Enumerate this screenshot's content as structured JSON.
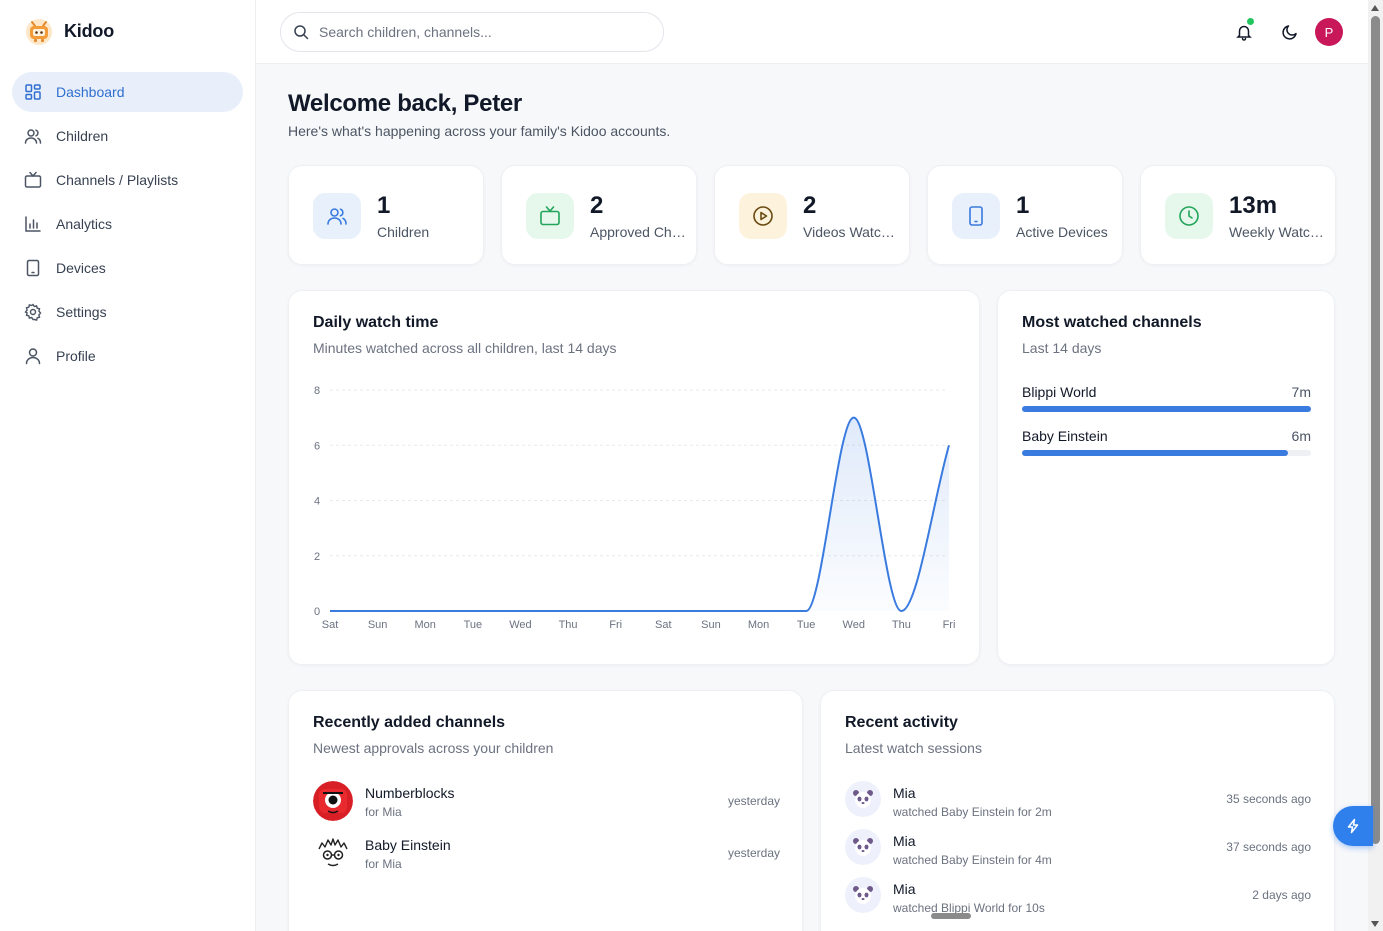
{
  "brand": {
    "name": "Kidoo"
  },
  "sidebar": {
    "items": [
      {
        "label": "Dashboard",
        "icon": "grid-icon",
        "active": true
      },
      {
        "label": "Children",
        "icon": "users-icon"
      },
      {
        "label": "Channels / Playlists",
        "icon": "tv-icon"
      },
      {
        "label": "Analytics",
        "icon": "bar-chart-icon"
      },
      {
        "label": "Devices",
        "icon": "tablet-icon"
      },
      {
        "label": "Settings",
        "icon": "gear-icon"
      },
      {
        "label": "Profile",
        "icon": "user-icon"
      }
    ]
  },
  "topbar": {
    "search_placeholder": "Search children, channels...",
    "avatar_initial": "P"
  },
  "welcome": {
    "title": "Welcome back, Peter",
    "subtitle": "Here's what's happening across your family's Kidoo accounts."
  },
  "stats": [
    {
      "value": "1",
      "label": "Children",
      "icon": "users-icon",
      "bg": "#e8f0fb",
      "fg": "#3a7be0"
    },
    {
      "value": "2",
      "label": "Approved Channels",
      "icon": "tv-icon",
      "bg": "#e6f7ec",
      "fg": "#22a55a"
    },
    {
      "value": "2",
      "label": "Videos Watched",
      "icon": "play-circle-icon",
      "bg": "#fdf3dc",
      "fg": "#6b4a12"
    },
    {
      "value": "1",
      "label": "Active Devices",
      "icon": "tablet-icon",
      "bg": "#e8f0fb",
      "fg": "#3a7be0"
    },
    {
      "value": "13m",
      "label": "Weekly Watch Time",
      "icon": "clock-icon",
      "bg": "#e6f7ec",
      "fg": "#22a55a"
    }
  ],
  "daily_chart": {
    "title": "Daily watch time",
    "subtitle": "Minutes watched across all children, last 14 days"
  },
  "chart_data": {
    "type": "area",
    "categories": [
      "Sat",
      "Sun",
      "Mon",
      "Tue",
      "Wed",
      "Thu",
      "Fri",
      "Sat",
      "Sun",
      "Mon",
      "Tue",
      "Wed",
      "Thu",
      "Fri"
    ],
    "values": [
      0,
      0,
      0,
      0,
      0,
      0,
      0,
      0,
      0,
      0,
      0,
      7,
      0,
      6
    ],
    "ylim": [
      0,
      8
    ],
    "yticks": [
      "0",
      "2",
      "4",
      "6",
      "8"
    ],
    "grid": true,
    "color": "#3a7be0"
  },
  "most_watched": {
    "title": "Most watched channels",
    "subtitle": "Last 14 days",
    "items": [
      {
        "name": "Blippi World",
        "value": "7m",
        "fraction": 1.0
      },
      {
        "name": "Baby Einstein",
        "value": "6m",
        "fraction": 0.92
      }
    ]
  },
  "recent_channels": {
    "title": "Recently added channels",
    "subtitle": "Newest approvals across your children",
    "items": [
      {
        "name": "Numberblocks",
        "for": "for Mia",
        "time": "yesterday",
        "icon": "numberblocks-avatar-icon"
      },
      {
        "name": "Baby Einstein",
        "for": "for Mia",
        "time": "yesterday",
        "icon": "baby-einstein-avatar-icon"
      }
    ]
  },
  "recent_activity": {
    "title": "Recent activity",
    "subtitle": "Latest watch sessions",
    "items": [
      {
        "name": "Mia",
        "detail": "watched Baby Einstein for 2m",
        "time": "35 seconds ago"
      },
      {
        "name": "Mia",
        "detail": "watched Baby Einstein for 4m",
        "time": "37 seconds ago"
      },
      {
        "name": "Mia",
        "detail": "watched Blippi World for 10s",
        "time": "2 days ago"
      }
    ]
  }
}
